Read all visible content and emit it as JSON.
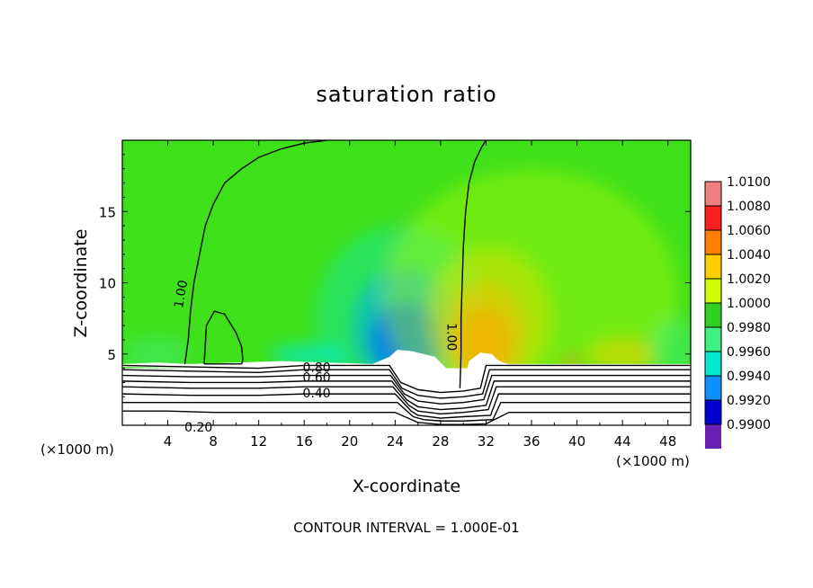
{
  "chart_data": {
    "type": "heatmap",
    "title": "saturation ratio",
    "xlabel": "X-coordinate",
    "ylabel": "Z-coordinate",
    "x_unit": "(×1000 m)",
    "x_unit_right": "(×1000 m)",
    "footer": "CONTOUR INTERVAL = 1.000E-01",
    "xlim": [
      0,
      50
    ],
    "ylim": [
      0,
      20
    ],
    "xticks": [
      4,
      8,
      12,
      16,
      20,
      24,
      28,
      32,
      36,
      40,
      44,
      48
    ],
    "yticks": [
      5,
      10,
      15
    ],
    "colorbar": {
      "range": [
        0.99,
        1.01
      ],
      "ticks": [
        "1.0100",
        "1.0080",
        "1.0060",
        "1.0040",
        "1.0020",
        "1.0000",
        "0.9980",
        "0.9960",
        "0.9940",
        "0.9920",
        "0.9900"
      ],
      "colors": [
        "#f08080",
        "#ff2020",
        "#ff8000",
        "#ffd000",
        "#ccff00",
        "#30d020",
        "#40f080",
        "#00e8d0",
        "#1090ff",
        "#0000d0",
        "#6a20b0"
      ]
    },
    "background_color": "#3ee01a",
    "contour_labels": [
      {
        "text": "1.00",
        "x": 5.2,
        "y": 9.2,
        "rotate": -80
      },
      {
        "text": "1.00",
        "x": 28.9,
        "y": 6.2,
        "rotate": 90
      },
      {
        "text": "0.80",
        "x": 17.1,
        "y": 4.0,
        "rotate": 0
      },
      {
        "text": "0.60",
        "x": 17.1,
        "y": 3.3,
        "rotate": 0
      },
      {
        "text": "0.40",
        "x": 17.1,
        "y": 2.2,
        "rotate": 0
      },
      {
        "text": "0.20",
        "x": 6.7,
        "y": -0.2,
        "rotate": 0
      }
    ],
    "contours": [
      {
        "level": 1.0,
        "x": [
          5.5,
          5.8,
          6.0,
          6.3,
          6.8,
          7.3,
          8.0,
          9.0,
          10.5,
          12.0,
          14.0,
          16.0,
          18.0
        ],
        "y": [
          4.3,
          6.0,
          8.0,
          10.0,
          12.0,
          14.0,
          15.5,
          17.0,
          18.0,
          18.8,
          19.4,
          19.8,
          20.0
        ]
      },
      {
        "level": 1.0,
        "x": [
          29.7,
          29.8,
          29.8,
          29.9,
          30.0,
          30.2,
          30.5,
          31.0,
          31.6,
          32.0
        ],
        "y": [
          2.6,
          5.0,
          7.5,
          10.0,
          12.5,
          15.0,
          17.0,
          18.5,
          19.5,
          20.0
        ]
      },
      {
        "level": 1.0,
        "x": [
          7.2,
          7.4,
          8.1,
          9.0,
          10.0,
          10.5,
          10.6,
          10.5,
          8.0,
          7.2
        ],
        "y": [
          4.3,
          7.0,
          8.0,
          7.8,
          6.5,
          5.5,
          4.6,
          4.3,
          4.3,
          4.3
        ]
      },
      {
        "level": 0.9,
        "x": [
          0,
          6,
          12,
          16,
          20,
          23.5,
          24.5,
          26,
          28,
          30,
          31.5,
          32,
          33,
          36,
          40,
          44,
          50
        ],
        "y": [
          4.2,
          4.1,
          4.0,
          4.2,
          4.2,
          4.2,
          3.0,
          2.5,
          2.3,
          2.4,
          2.6,
          4.2,
          4.2,
          4.2,
          4.2,
          4.2,
          4.2
        ]
      },
      {
        "level": 0.8,
        "x": [
          0,
          6,
          12,
          16,
          20,
          23.5,
          24.6,
          26,
          28,
          30,
          31.7,
          32.3,
          33,
          36,
          40,
          44,
          50
        ],
        "y": [
          3.9,
          3.8,
          3.7,
          3.9,
          3.9,
          3.9,
          2.6,
          2.1,
          1.9,
          2.0,
          2.2,
          3.9,
          3.9,
          3.9,
          3.9,
          3.9,
          3.9
        ]
      },
      {
        "level": 0.7,
        "x": [
          0,
          6,
          12,
          16,
          20,
          23.6,
          24.8,
          26,
          28,
          30,
          31.8,
          32.5,
          33,
          36,
          40,
          44,
          50
        ],
        "y": [
          3.5,
          3.4,
          3.4,
          3.5,
          3.5,
          3.5,
          2.2,
          1.7,
          1.5,
          1.6,
          1.8,
          3.5,
          3.5,
          3.5,
          3.5,
          3.5,
          3.5
        ]
      },
      {
        "level": 0.6,
        "x": [
          0,
          6,
          12,
          16,
          20,
          23.7,
          25.0,
          26,
          28,
          30,
          32,
          32.7,
          33.2,
          36,
          40,
          44,
          50
        ],
        "y": [
          3.1,
          3.0,
          3.0,
          3.1,
          3.1,
          3.1,
          1.8,
          1.3,
          1.1,
          1.2,
          1.4,
          3.1,
          3.1,
          3.1,
          3.1,
          3.1,
          3.1
        ]
      },
      {
        "level": 0.5,
        "x": [
          0,
          6,
          12,
          16,
          20,
          23.8,
          25.2,
          26,
          28,
          30,
          32.2,
          32.9,
          33.4,
          36,
          40,
          44,
          50
        ],
        "y": [
          2.7,
          2.6,
          2.6,
          2.7,
          2.7,
          2.7,
          1.4,
          1.0,
          0.8,
          0.9,
          1.1,
          2.7,
          2.7,
          2.7,
          2.7,
          2.7,
          2.7
        ]
      },
      {
        "level": 0.4,
        "x": [
          0,
          6,
          12,
          16,
          20,
          24.0,
          25.4,
          26,
          28,
          30,
          32.4,
          33.1,
          33.6,
          36,
          40,
          44,
          50
        ],
        "y": [
          2.2,
          2.1,
          2.1,
          2.2,
          2.2,
          2.2,
          1.0,
          0.7,
          0.5,
          0.6,
          0.7,
          2.2,
          2.2,
          2.2,
          2.2,
          2.2,
          2.2
        ]
      },
      {
        "level": 0.3,
        "x": [
          0,
          6,
          12,
          16,
          20,
          24.2,
          25.6,
          26.5,
          28,
          30,
          32.6,
          33.3,
          33.8,
          36,
          40,
          44,
          50
        ],
        "y": [
          1.6,
          1.6,
          1.6,
          1.6,
          1.6,
          1.6,
          0.6,
          0.4,
          0.3,
          0.3,
          0.4,
          1.6,
          1.6,
          1.6,
          1.6,
          1.6,
          1.6
        ]
      },
      {
        "level": 0.2,
        "x": [
          0,
          4,
          8,
          12,
          16,
          20,
          24,
          26,
          28,
          30,
          32,
          34,
          36,
          40,
          44,
          50
        ],
        "y": [
          1.0,
          1.0,
          0.9,
          0.9,
          0.9,
          0.9,
          0.9,
          0.2,
          0.05,
          0.05,
          0.1,
          0.9,
          0.9,
          0.9,
          0.9,
          0.9
        ]
      }
    ],
    "white_regions": [
      {
        "x": [
          0,
          3,
          6,
          10,
          14,
          18,
          22,
          23.5,
          24.2,
          25.5,
          27.5,
          28.5,
          29.2,
          29.2,
          28,
          26,
          24.5,
          23.8,
          20,
          16,
          12,
          6,
          0
        ],
        "y": [
          4.3,
          4.4,
          4.3,
          4.4,
          4.5,
          4.4,
          4.3,
          4.8,
          5.3,
          5.2,
          4.8,
          4.0,
          3.0,
          2.2,
          1.8,
          1.9,
          2.6,
          3.9,
          4.0,
          4.0,
          3.9,
          4.0,
          4.1
        ]
      },
      {
        "x": [
          29.8,
          30.5,
          31.5,
          32.5,
          33.0,
          33.5,
          34,
          38,
          42,
          46,
          50,
          50,
          46,
          40,
          33.5,
          32.2,
          31.5,
          30.5,
          29.8
        ],
        "y": [
          2.2,
          4.5,
          5.1,
          5.0,
          4.6,
          4.4,
          4.3,
          4.3,
          4.3,
          4.3,
          4.3,
          4.0,
          4.0,
          4.0,
          4.0,
          2.0,
          1.8,
          1.9,
          2.2
        ]
      }
    ],
    "anomalies": [
      {
        "color": "#0000d0",
        "cx": 25.0,
        "cy": 6.0,
        "rx": 3.2,
        "ry": 2.6,
        "opacity": 0.95
      },
      {
        "color": "#1090ff",
        "cx": 24.8,
        "cy": 6.8,
        "rx": 4.6,
        "ry": 4.2,
        "opacity": 0.55
      },
      {
        "color": "#00e8d0",
        "cx": 24.5,
        "cy": 7.5,
        "rx": 7.5,
        "ry": 6.5,
        "opacity": 0.35
      },
      {
        "color": "#ff2020",
        "cx": 31.8,
        "cy": 5.8,
        "rx": 2.4,
        "ry": 2.4,
        "opacity": 0.95
      },
      {
        "color": "#ff8000",
        "cx": 32.0,
        "cy": 6.5,
        "rx": 3.6,
        "ry": 3.6,
        "opacity": 0.6
      },
      {
        "color": "#ffd000",
        "cx": 32.3,
        "cy": 7.5,
        "rx": 5.5,
        "ry": 5.0,
        "opacity": 0.45
      },
      {
        "color": "#ccff00",
        "cx": 36.0,
        "cy": 9.0,
        "rx": 13.0,
        "ry": 9.0,
        "opacity": 0.35
      },
      {
        "color": "#ff2020",
        "cx": 39.5,
        "cy": 4.5,
        "rx": 0.7,
        "ry": 0.35,
        "opacity": 0.9
      },
      {
        "color": "#ffd000",
        "cx": 44.0,
        "cy": 5.0,
        "rx": 3.0,
        "ry": 1.2,
        "opacity": 0.5
      },
      {
        "color": "#00e8d0",
        "cx": 16.5,
        "cy": 4.9,
        "rx": 3.5,
        "ry": 0.8,
        "opacity": 0.7
      },
      {
        "color": "#40f080",
        "cx": 3.0,
        "cy": 5.0,
        "rx": 3.0,
        "ry": 1.2,
        "opacity": 0.5
      },
      {
        "color": "#40f080",
        "cx": 48.5,
        "cy": 5.5,
        "rx": 2.0,
        "ry": 2.0,
        "opacity": 0.5
      }
    ]
  }
}
